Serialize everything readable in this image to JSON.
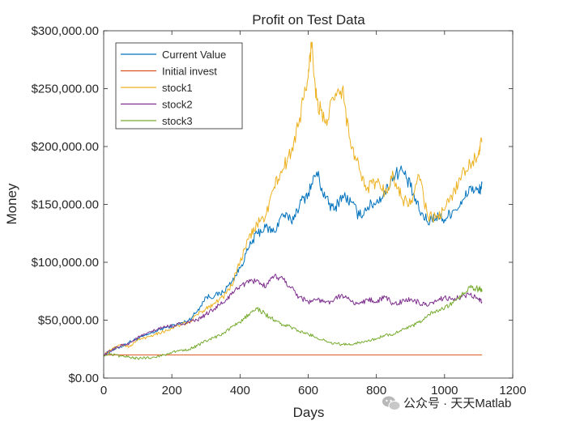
{
  "watermark": {
    "text": "公众号 · 天天Matlab",
    "icon": "wechat-icon"
  },
  "chart_data": {
    "type": "line",
    "title": "Profit on Test Data",
    "xlabel": "Days",
    "ylabel": "Money",
    "xlim": [
      0,
      1200
    ],
    "ylim": [
      0,
      300000
    ],
    "x_ticks": [
      0,
      200,
      400,
      600,
      800,
      1000,
      1200
    ],
    "y_ticks": [
      0,
      50000,
      100000,
      150000,
      200000,
      250000,
      300000
    ],
    "x_tick_labels": [
      "0",
      "200",
      "400",
      "600",
      "800",
      "1000",
      "1200"
    ],
    "y_tick_labels": [
      "$0.00",
      "$50,000.00",
      "$100,000.00",
      "$150,000.00",
      "$200,000.00",
      "$250,000.00",
      "$300,000.00"
    ],
    "grid": false,
    "legend_position": "top-left",
    "legend": [
      "Current Value",
      "Initial invest",
      "stock1",
      "stock2",
      "stock3"
    ],
    "series": [
      {
        "name": "Current Value",
        "color": "#0072bd",
        "x": [
          0,
          25,
          50,
          75,
          100,
          125,
          150,
          175,
          200,
          225,
          250,
          275,
          300,
          325,
          350,
          375,
          400,
          425,
          450,
          475,
          500,
          525,
          550,
          575,
          600,
          625,
          650,
          675,
          700,
          725,
          750,
          775,
          800,
          825,
          850,
          875,
          900,
          925,
          950,
          975,
          1000,
          1025,
          1050,
          1075,
          1100,
          1110
        ],
        "y": [
          20000,
          24000,
          27000,
          31000,
          34000,
          37000,
          40000,
          43000,
          45000,
          47000,
          50000,
          58000,
          70000,
          71000,
          74000,
          83000,
          95000,
          112000,
          125000,
          130000,
          126000,
          142000,
          135000,
          150000,
          160000,
          178000,
          155000,
          145000,
          158000,
          152000,
          140000,
          148000,
          152000,
          160000,
          175000,
          180000,
          165000,
          145000,
          135000,
          140000,
          137000,
          145000,
          150000,
          165000,
          160000,
          168000
        ]
      },
      {
        "name": "Initial invest",
        "color": "#d95319",
        "x": [
          0,
          1110
        ],
        "y": [
          20000,
          20000
        ]
      },
      {
        "name": "stock1",
        "color": "#edb120",
        "x": [
          0,
          25,
          50,
          75,
          100,
          125,
          150,
          175,
          200,
          225,
          250,
          275,
          300,
          325,
          350,
          375,
          400,
          425,
          450,
          475,
          500,
          525,
          550,
          575,
          600,
          610,
          625,
          650,
          675,
          700,
          725,
          750,
          775,
          800,
          825,
          850,
          875,
          900,
          925,
          950,
          975,
          1000,
          1025,
          1050,
          1075,
          1100,
          1110
        ],
        "y": [
          20000,
          25000,
          29000,
          27000,
          33000,
          35000,
          38000,
          40000,
          43000,
          46000,
          48000,
          55000,
          60000,
          65000,
          70000,
          80000,
          100000,
          120000,
          133000,
          140000,
          165000,
          180000,
          195000,
          225000,
          260000,
          290000,
          240000,
          220000,
          240000,
          250000,
          200000,
          180000,
          165000,
          170000,
          160000,
          175000,
          155000,
          150000,
          175000,
          140000,
          138000,
          145000,
          160000,
          175000,
          185000,
          195000,
          205000
        ]
      },
      {
        "name": "stock2",
        "color": "#7e2f8e",
        "x": [
          0,
          25,
          50,
          75,
          100,
          125,
          150,
          175,
          200,
          225,
          250,
          275,
          300,
          325,
          350,
          375,
          400,
          425,
          450,
          475,
          500,
          525,
          550,
          575,
          600,
          625,
          650,
          675,
          700,
          725,
          750,
          775,
          800,
          825,
          850,
          875,
          900,
          925,
          950,
          975,
          1000,
          1025,
          1050,
          1075,
          1100,
          1110
        ],
        "y": [
          20000,
          24000,
          28000,
          30000,
          35000,
          38000,
          41000,
          44000,
          45000,
          47000,
          48000,
          50000,
          55000,
          60000,
          65000,
          72000,
          80000,
          82000,
          85000,
          78000,
          88000,
          86000,
          78000,
          70000,
          66000,
          68000,
          65000,
          67000,
          72000,
          66000,
          64000,
          68000,
          66000,
          70000,
          64000,
          66000,
          68000,
          65000,
          62000,
          66000,
          70000,
          68000,
          70000,
          72000,
          68000,
          65000
        ]
      },
      {
        "name": "stock3",
        "color": "#77ac30",
        "x": [
          0,
          25,
          50,
          75,
          100,
          125,
          150,
          175,
          200,
          225,
          250,
          275,
          300,
          325,
          350,
          375,
          400,
          425,
          450,
          475,
          500,
          525,
          550,
          575,
          600,
          625,
          650,
          675,
          700,
          725,
          750,
          775,
          800,
          825,
          850,
          875,
          900,
          925,
          950,
          975,
          1000,
          1025,
          1050,
          1075,
          1100,
          1110
        ],
        "y": [
          20000,
          20000,
          19000,
          18000,
          17000,
          17500,
          18000,
          20000,
          22000,
          24000,
          25000,
          28000,
          32000,
          35000,
          38000,
          44000,
          48000,
          55000,
          60000,
          55000,
          50000,
          46000,
          44000,
          40000,
          38000,
          35000,
          32000,
          30000,
          29000,
          29000,
          31000,
          32000,
          34000,
          37000,
          38000,
          42000,
          44000,
          48000,
          54000,
          58000,
          60000,
          65000,
          72000,
          78000,
          77000,
          75000
        ]
      }
    ]
  }
}
